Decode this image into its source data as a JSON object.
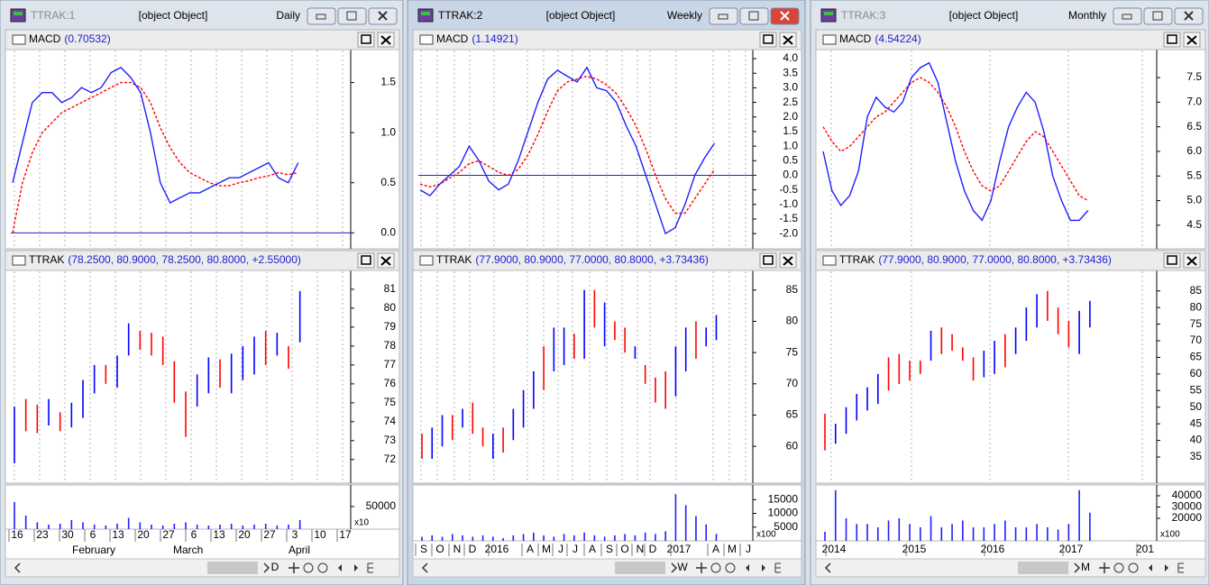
{
  "colors": {
    "macd": "#1f1fff",
    "signal": "#ff0000",
    "baseline": "#2020d0",
    "volume": "#1f1fff"
  },
  "windows": [
    {
      "title": "TTRAK:1",
      "price": {
        "label": "TTRAK",
        "reading": "(78.2500, 80.9000, 78.2500, 80.8000, +2.55000)",
        "ylim": [
          70.8,
          81.95
        ],
        "yticks": [
          72,
          73,
          74,
          75,
          76,
          77,
          78,
          79,
          80,
          81
        ],
        "lows": [
          71.8,
          73.5,
          73.4,
          73.8,
          73.5,
          73.7,
          74.2,
          75.5,
          76.0,
          75.8,
          77.5,
          77.8,
          77.5,
          77.0,
          75.0,
          73.2,
          74.8,
          75.5,
          75.8,
          75.5,
          76.2,
          76.5,
          77.0,
          77.5,
          76.8,
          78.2
        ],
        "highs": [
          74.8,
          75.2,
          74.9,
          75.2,
          74.5,
          75.0,
          76.2,
          77.0,
          77.0,
          77.5,
          79.2,
          78.8,
          78.7,
          78.5,
          77.2,
          75.6,
          76.5,
          77.4,
          77.3,
          77.6,
          78.0,
          78.5,
          78.8,
          78.7,
          78.0,
          80.9
        ],
        "bar_colors": [
          "#0000ff",
          "#ff0000",
          "#ff0000",
          "#0000ff",
          "#ff0000",
          "#0000ff",
          "#0000ff",
          "#0000ff",
          "#ff0000",
          "#0000ff",
          "#0000ff",
          "#ff0000",
          "#ff0000",
          "#ff0000",
          "#ff0000",
          "#ff0000",
          "#0000ff",
          "#0000ff",
          "#ff0000",
          "#0000ff",
          "#0000ff",
          "#0000ff",
          "#ff0000",
          "#0000ff",
          "#ff0000",
          "#0000ff"
        ]
      },
      "period": "Daily",
      "period_key": "D",
      "macd": {
        "label": "MACD",
        "reading": "(0.70532)",
        "ylim": [
          -0.15,
          1.82
        ],
        "yticks": [
          {
            "value": 0,
            "label": "0.0"
          },
          0.5,
          {
            "value": 1,
            "label": "1.0"
          },
          1.5
        ],
        "baseline": 0,
        "macd": [
          0.5,
          0.9,
          1.3,
          1.4,
          1.4,
          1.3,
          1.35,
          1.45,
          1.4,
          1.45,
          1.6,
          1.65,
          1.55,
          1.4,
          1.0,
          0.5,
          0.3,
          0.35,
          0.4,
          0.4,
          0.45,
          0.5,
          0.55,
          0.55,
          0.6,
          0.65,
          0.7,
          0.55,
          0.5,
          0.7
        ],
        "signal": [
          0.0,
          0.5,
          0.8,
          1.0,
          1.1,
          1.2,
          1.25,
          1.3,
          1.35,
          1.4,
          1.45,
          1.5,
          1.5,
          1.45,
          1.3,
          1.05,
          0.85,
          0.7,
          0.6,
          0.55,
          0.5,
          0.47,
          0.47,
          0.5,
          0.52,
          0.55,
          0.57,
          0.6,
          0.58,
          0.6
        ]
      },
      "volume": {
        "ylim": [
          0,
          94000
        ],
        "yticks": [
          50000
        ],
        "multiplier": "x10",
        "values": [
          60000,
          30000,
          15000,
          10000,
          12000,
          20000,
          15000,
          10000,
          8000,
          12000,
          25000,
          15000,
          10000,
          8000,
          12000,
          15000,
          10000,
          8000,
          10000,
          12000,
          8000,
          10000,
          12000,
          8000,
          10000,
          20000
        ]
      },
      "date_labels": [
        "16",
        "23",
        "30",
        "6",
        "13",
        "20",
        "27",
        "6",
        "13",
        "20",
        "27",
        "3",
        "10",
        "17"
      ],
      "month_labels": [
        "February",
        "March",
        "April"
      ]
    },
    {
      "title": "TTRAK:2",
      "price": {
        "label": "TTRAK",
        "reading": "(77.9000, 80.9000, 77.0000, 80.8000, +3.73436)",
        "ylim": [
          54.25,
          88
        ],
        "yticks": [
          60,
          65,
          70,
          75,
          80,
          85
        ],
        "lows": [
          58,
          58,
          60,
          61,
          63,
          62,
          60,
          58,
          59,
          61,
          63,
          66,
          69,
          72,
          73,
          74,
          74,
          79,
          76,
          77,
          75,
          74,
          70,
          67,
          66,
          68,
          72,
          74,
          76,
          77
        ],
        "highs": [
          62,
          63,
          65,
          65,
          66,
          67,
          63,
          62,
          63,
          66,
          69,
          72,
          76,
          79,
          79,
          78,
          85,
          85,
          83,
          80,
          79,
          76,
          73,
          71,
          72,
          76,
          79,
          80,
          79,
          81
        ],
        "bar_colors": [
          "#ff0000",
          "#0000ff",
          "#0000ff",
          "#ff0000",
          "#0000ff",
          "#ff0000",
          "#ff0000",
          "#0000ff",
          "#ff0000",
          "#0000ff",
          "#0000ff",
          "#0000ff",
          "#ff0000",
          "#0000ff",
          "#0000ff",
          "#ff0000",
          "#0000ff",
          "#ff0000",
          "#0000ff",
          "#ff0000",
          "#ff0000",
          "#0000ff",
          "#ff0000",
          "#ff0000",
          "#ff0000",
          "#0000ff",
          "#0000ff",
          "#ff0000",
          "#0000ff",
          "#0000ff"
        ]
      },
      "period": "Weekly",
      "period_key": "W",
      "macd": {
        "label": "MACD",
        "reading": "(1.14921)",
        "ylim": [
          -2.49,
          4.28
        ],
        "yticks": [
          {
            "value": 4,
            "label": "4.0"
          },
          3.5,
          {
            "value": 3,
            "label": "3.0"
          },
          2.5,
          {
            "value": 2,
            "label": "2.0"
          },
          1.5,
          {
            "value": 1,
            "label": "1.0"
          },
          0.5,
          {
            "value": 0,
            "label": "0.0"
          },
          -0.5,
          {
            "value": -1,
            "label": "-1.0"
          },
          -1.5,
          {
            "value": -2,
            "label": "-2.0"
          }
        ],
        "baseline": 0,
        "macd": [
          -0.5,
          -0.7,
          -0.3,
          0,
          0.3,
          1.0,
          0.5,
          -0.2,
          -0.5,
          -0.3,
          0.5,
          1.5,
          2.5,
          3.3,
          3.6,
          3.4,
          3.2,
          3.7,
          3.0,
          2.9,
          2.5,
          1.7,
          1.0,
          0,
          -1.0,
          -2.0,
          -1.8,
          -1.0,
          0.0,
          0.6,
          1.1
        ],
        "signal": [
          -0.3,
          -0.4,
          -0.3,
          -0.1,
          0.1,
          0.4,
          0.5,
          0.3,
          0.1,
          0,
          0.2,
          0.7,
          1.4,
          2.2,
          2.9,
          3.2,
          3.3,
          3.4,
          3.3,
          3.1,
          2.8,
          2.3,
          1.7,
          0.9,
          0,
          -0.8,
          -1.3,
          -1.3,
          -0.8,
          -0.3,
          0.2
        ]
      },
      "volume": {
        "ylim": [
          0,
          19700
        ],
        "yticks": [
          15000,
          10000,
          5000
        ],
        "multiplier": "x100",
        "values": [
          1500,
          2000,
          1500,
          2500,
          2000,
          1500,
          2000,
          1500,
          1000,
          2000,
          2500,
          3000,
          2000,
          1500,
          2500,
          2000,
          3000,
          2000,
          1500,
          2000,
          2500,
          2000,
          3000,
          2500,
          3500,
          17000,
          13000,
          9000,
          6000,
          2500
        ]
      },
      "date_labels": [
        "S",
        "O",
        "N",
        "D",
        "2016",
        "A",
        "M",
        "J",
        "J",
        "A",
        "S",
        "O",
        "N",
        "D",
        "2017",
        "A",
        "M",
        "J"
      ]
    },
    {
      "title": "TTRAK:3",
      "price": {
        "label": "TTRAK",
        "reading": "(77.9000, 80.9000, 77.0000, 80.8000, +3.73436)",
        "ylim": [
          27.4,
          90.9
        ],
        "yticks": [
          35,
          40,
          45,
          50,
          55,
          60,
          65,
          70,
          75,
          80,
          85
        ],
        "lows": [
          37,
          39,
          42,
          46,
          49,
          51,
          55,
          57,
          58,
          60,
          64,
          66,
          67,
          64,
          58,
          59,
          60,
          62,
          66,
          70,
          74,
          76,
          72,
          68,
          66,
          74
        ],
        "highs": [
          48,
          45,
          50,
          54,
          56,
          60,
          65,
          66,
          64,
          64,
          73,
          74,
          72,
          68,
          65,
          67,
          70,
          72,
          74,
          80,
          84,
          85,
          80,
          76,
          79,
          82
        ],
        "bar_colors": [
          "#ff0000",
          "#0000ff",
          "#0000ff",
          "#0000ff",
          "#0000ff",
          "#0000ff",
          "#ff0000",
          "#ff0000",
          "#ff0000",
          "#ff0000",
          "#0000ff",
          "#ff0000",
          "#ff0000",
          "#ff0000",
          "#ff0000",
          "#0000ff",
          "#0000ff",
          "#ff0000",
          "#0000ff",
          "#0000ff",
          "#0000ff",
          "#ff0000",
          "#ff0000",
          "#ff0000",
          "#0000ff",
          "#0000ff"
        ]
      },
      "period": "Monthly",
      "period_key": "M",
      "macd": {
        "label": "MACD",
        "reading": "(4.54224)",
        "ylim": [
          4.04,
          8.05
        ],
        "yticks": [
          7.5,
          {
            "value": 7,
            "label": "7.0"
          },
          6.5,
          {
            "value": 6,
            "label": "6.0"
          },
          5.5,
          {
            "value": 5,
            "label": "5.0"
          },
          4.5
        ],
        "macd": [
          6.0,
          5.2,
          4.9,
          5.1,
          5.6,
          6.7,
          7.1,
          6.9,
          6.8,
          7.0,
          7.5,
          7.7,
          7.8,
          7.4,
          6.6,
          5.8,
          5.2,
          4.8,
          4.6,
          5.0,
          5.8,
          6.5,
          6.9,
          7.2,
          7.0,
          6.4,
          5.5,
          5.0,
          4.6,
          4.6,
          4.8
        ],
        "signal": [
          6.5,
          6.2,
          6.0,
          6.1,
          6.3,
          6.5,
          6.7,
          6.8,
          7.0,
          7.2,
          7.4,
          7.5,
          7.4,
          7.2,
          6.9,
          6.5,
          6.0,
          5.6,
          5.3,
          5.2,
          5.3,
          5.6,
          5.9,
          6.2,
          6.4,
          6.3,
          6.0,
          5.7,
          5.4,
          5.1,
          5.0
        ]
      },
      "volume": {
        "ylim": [
          0,
          48000
        ],
        "yticks": [
          40000,
          30000,
          20000
        ],
        "multiplier": "x100",
        "values": [
          8000,
          45000,
          20000,
          15000,
          15000,
          12000,
          18000,
          20000,
          15000,
          12000,
          22000,
          12000,
          15000,
          18000,
          12000,
          12000,
          15000,
          18000,
          12000,
          12000,
          15000,
          12000,
          10000,
          15000,
          45000,
          25000
        ]
      },
      "date_labels": [
        "2014",
        "2015",
        "2016",
        "2017",
        "201"
      ]
    }
  ]
}
